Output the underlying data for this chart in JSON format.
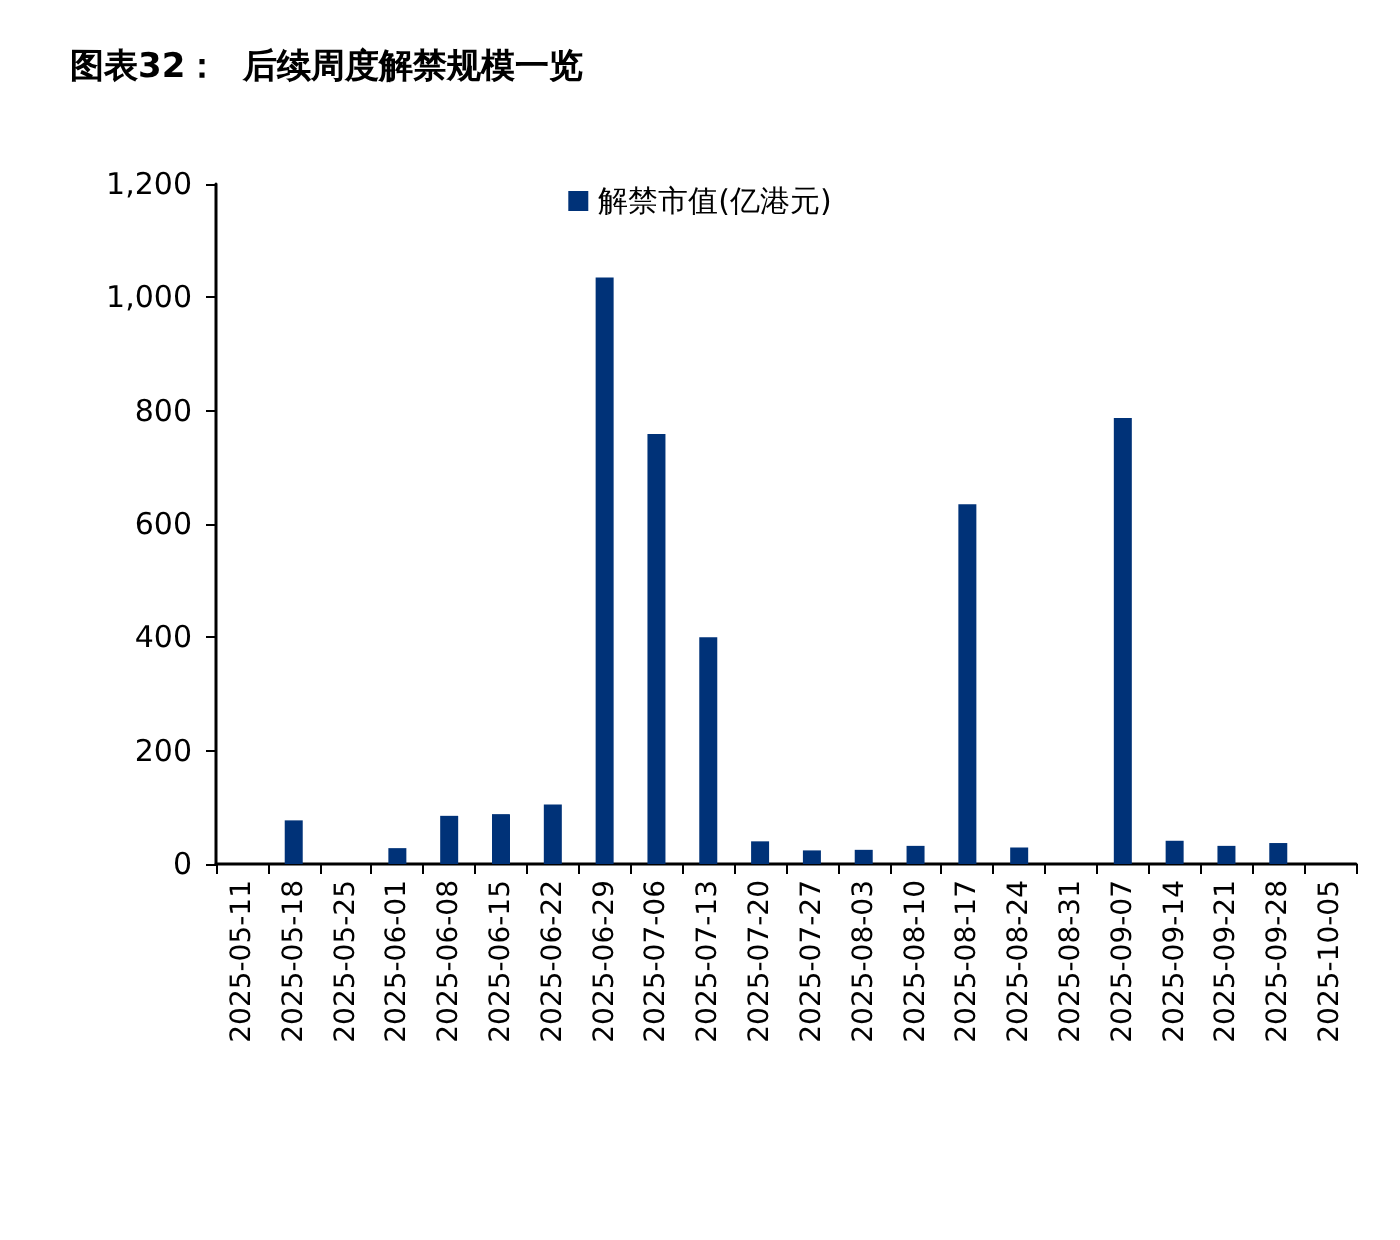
{
  "chart_data": {
    "type": "bar",
    "title": "图表32：  后续周度解禁规模一览",
    "categories": [
      "2025-05-11",
      "2025-05-18",
      "2025-05-25",
      "2025-06-01",
      "2025-06-08",
      "2025-06-15",
      "2025-06-22",
      "2025-06-29",
      "2025-07-06",
      "2025-07-13",
      "2025-07-20",
      "2025-07-27",
      "2025-08-03",
      "2025-08-10",
      "2025-08-17",
      "2025-08-24",
      "2025-08-31",
      "2025-09-07",
      "2025-09-14",
      "2025-09-21",
      "2025-09-28",
      "2025-10-05"
    ],
    "series": [
      {
        "name": "解禁市值(亿港元)",
        "color": "#003278",
        "values": [
          null,
          77,
          null,
          28,
          85,
          88,
          105,
          1035,
          759,
          400,
          40,
          24,
          25,
          32,
          635,
          29,
          null,
          787,
          41,
          32,
          37,
          null
        ]
      }
    ],
    "ylim": [
      0,
      1200
    ],
    "yticks": [
      0,
      200,
      400,
      600,
      800,
      {
        "value": 1000,
        "label": "1,000"
      },
      {
        "value": 1200,
        "label": "1,200"
      }
    ],
    "grid": false,
    "legend": "top"
  }
}
